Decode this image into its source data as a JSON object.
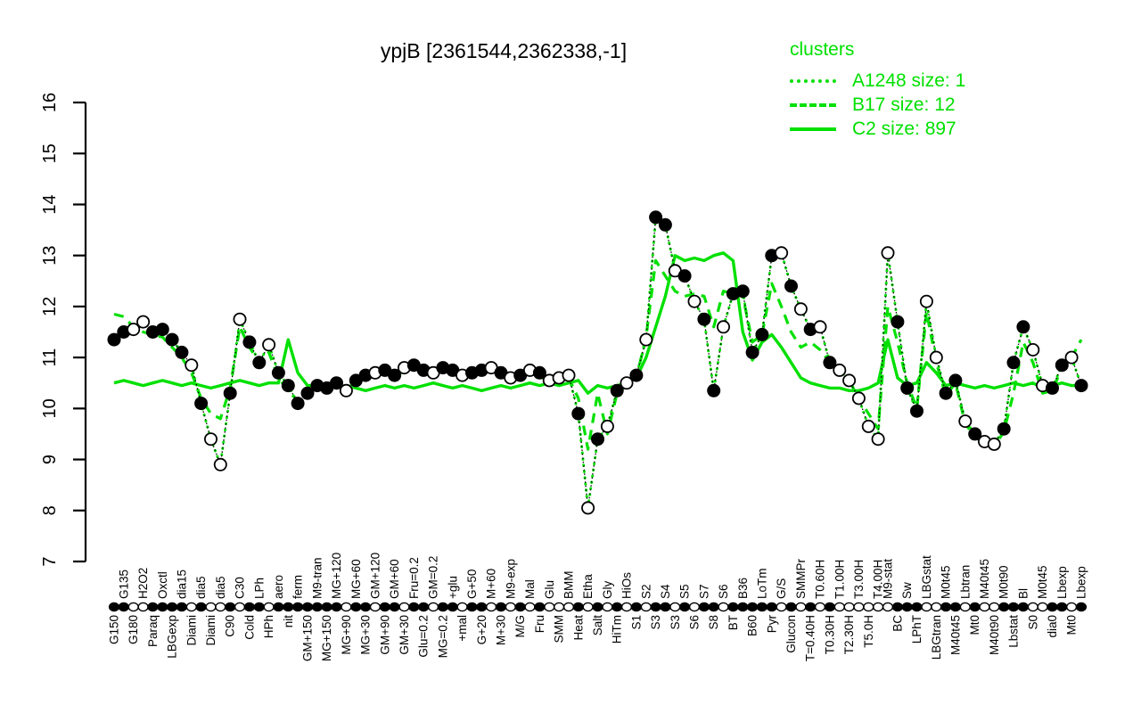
{
  "title": "ypjB [2361544,2362338,-1]",
  "legend": {
    "title": "clusters",
    "entries": [
      {
        "label": "A1248 size: 1",
        "style": "dotted"
      },
      {
        "label": "B17 size: 12",
        "style": "dashed"
      },
      {
        "label": "C2 size: 897",
        "style": "solid"
      }
    ]
  },
  "colors": {
    "cluster_green": "#00e000",
    "points_black": "#000000",
    "background": "#ffffff"
  },
  "chart_data": {
    "type": "line",
    "title": "ypjB [2361544,2362338,-1]",
    "xlabel": "",
    "ylabel": "",
    "ylim": [
      7,
      16
    ],
    "y_ticks": [
      7,
      8,
      9,
      10,
      11,
      12,
      13,
      14,
      15,
      16
    ],
    "grid": false,
    "legend_position": "top-right",
    "note": "Gene expression profile of ypjB across growth/stress conditions; black/open circles are per-sample values joined by a dotted line; green lines are cluster mean profiles. Condition labels alternate above (row t) and below (row b) the sample rug; fill k=filled black marker, w=open white marker.",
    "samples": [
      {
        "l": "G150",
        "r": "b",
        "f": "k",
        "v": 11.35
      },
      {
        "l": "G135",
        "r": "t",
        "f": "k",
        "v": 11.5
      },
      {
        "l": "G180",
        "r": "b",
        "f": "w",
        "v": 11.55
      },
      {
        "l": "H2O2",
        "r": "t",
        "f": "w",
        "v": 11.7
      },
      {
        "l": "Paraq",
        "r": "b",
        "f": "k",
        "v": 11.5
      },
      {
        "l": "Oxctl",
        "r": "t",
        "f": "k",
        "v": 11.55
      },
      {
        "l": "LBGexp",
        "r": "b",
        "f": "k",
        "v": 11.35
      },
      {
        "l": "dia15",
        "r": "t",
        "f": "k",
        "v": 11.1
      },
      {
        "l": "Diami",
        "r": "b",
        "f": "w",
        "v": 10.85
      },
      {
        "l": "dia5",
        "r": "t",
        "f": "k",
        "v": 10.1
      },
      {
        "l": "Diami",
        "r": "b",
        "f": "w",
        "v": 9.4
      },
      {
        "l": "dia5",
        "r": "t",
        "f": "w",
        "v": 8.9
      },
      {
        "l": "C90",
        "r": "b",
        "f": "k",
        "v": 10.3
      },
      {
        "l": "C30",
        "r": "t",
        "f": "w",
        "v": 11.75
      },
      {
        "l": "Cold",
        "r": "b",
        "f": "k",
        "v": 11.3
      },
      {
        "l": "LPh",
        "r": "t",
        "f": "k",
        "v": 10.9
      },
      {
        "l": "HPh",
        "r": "b",
        "f": "w",
        "v": 11.25
      },
      {
        "l": "aero",
        "r": "t",
        "f": "k",
        "v": 10.7
      },
      {
        "l": "nit",
        "r": "b",
        "f": "k",
        "v": 10.45
      },
      {
        "l": "ferm",
        "r": "t",
        "f": "k",
        "v": 10.1
      },
      {
        "l": "GM+150",
        "r": "b",
        "f": "k",
        "v": 10.3
      },
      {
        "l": "M9-tran",
        "r": "t",
        "f": "k",
        "v": 10.45
      },
      {
        "l": "MG+150",
        "r": "b",
        "f": "k",
        "v": 10.4
      },
      {
        "l": "MG+120",
        "r": "t",
        "f": "k",
        "v": 10.5
      },
      {
        "l": "MG+90",
        "r": "b",
        "f": "w",
        "v": 10.35
      },
      {
        "l": "MG+60",
        "r": "t",
        "f": "k",
        "v": 10.55
      },
      {
        "l": "MG+30",
        "r": "b",
        "f": "k",
        "v": 10.65
      },
      {
        "l": "GM+120",
        "r": "t",
        "f": "w",
        "v": 10.7
      },
      {
        "l": "GM+90",
        "r": "b",
        "f": "k",
        "v": 10.75
      },
      {
        "l": "GM+60",
        "r": "t",
        "f": "k",
        "v": 10.65
      },
      {
        "l": "GM+30",
        "r": "b",
        "f": "w",
        "v": 10.8
      },
      {
        "l": "Fru=0.2",
        "r": "t",
        "f": "k",
        "v": 10.85
      },
      {
        "l": "Glu=0.2",
        "r": "b",
        "f": "k",
        "v": 10.75
      },
      {
        "l": "GM=0.2",
        "r": "t",
        "f": "w",
        "v": 10.7
      },
      {
        "l": "MG=0.2",
        "r": "b",
        "f": "k",
        "v": 10.8
      },
      {
        "l": "+glu",
        "r": "t",
        "f": "k",
        "v": 10.75
      },
      {
        "l": "+mal",
        "r": "b",
        "f": "w",
        "v": 10.65
      },
      {
        "l": "G+50",
        "r": "t",
        "f": "k",
        "v": 10.7
      },
      {
        "l": "G+20",
        "r": "b",
        "f": "k",
        "v": 10.75
      },
      {
        "l": "M+60",
        "r": "t",
        "f": "w",
        "v": 10.8
      },
      {
        "l": "M+30",
        "r": "b",
        "f": "k",
        "v": 10.7
      },
      {
        "l": "M9-exp",
        "r": "t",
        "f": "w",
        "v": 10.6
      },
      {
        "l": "M/G",
        "r": "b",
        "f": "k",
        "v": 10.65
      },
      {
        "l": "Mal",
        "r": "t",
        "f": "w",
        "v": 10.75
      },
      {
        "l": "Fru",
        "r": "b",
        "f": "k",
        "v": 10.7
      },
      {
        "l": "Glu",
        "r": "t",
        "f": "w",
        "v": 10.55
      },
      {
        "l": "SMM",
        "r": "b",
        "f": "w",
        "v": 10.6
      },
      {
        "l": "BMM",
        "r": "t",
        "f": "w",
        "v": 10.65
      },
      {
        "l": "Heat",
        "r": "b",
        "f": "k",
        "v": 9.9
      },
      {
        "l": "Etha",
        "r": "t",
        "f": "w",
        "v": 8.05
      },
      {
        "l": "Salt",
        "r": "b",
        "f": "k",
        "v": 9.4
      },
      {
        "l": "Gly",
        "r": "t",
        "f": "w",
        "v": 9.65
      },
      {
        "l": "HiTm",
        "r": "b",
        "f": "k",
        "v": 10.35
      },
      {
        "l": "HiOs",
        "r": "t",
        "f": "w",
        "v": 10.5
      },
      {
        "l": "S1",
        "r": "b",
        "f": "k",
        "v": 10.65
      },
      {
        "l": "S2",
        "r": "t",
        "f": "w",
        "v": 11.35
      },
      {
        "l": "S3",
        "r": "b",
        "f": "k",
        "v": 13.75
      },
      {
        "l": "S4",
        "r": "t",
        "f": "k",
        "v": 13.6
      },
      {
        "l": "S3",
        "r": "b",
        "f": "w",
        "v": 12.7
      },
      {
        "l": "S5",
        "r": "t",
        "f": "k",
        "v": 12.6
      },
      {
        "l": "S6",
        "r": "b",
        "f": "w",
        "v": 12.1
      },
      {
        "l": "S7",
        "r": "t",
        "f": "k",
        "v": 11.75
      },
      {
        "l": "S8",
        "r": "b",
        "f": "k",
        "v": 10.35
      },
      {
        "l": "S6",
        "r": "t",
        "f": "w",
        "v": 11.6
      },
      {
        "l": "BT",
        "r": "b",
        "f": "k",
        "v": 12.25
      },
      {
        "l": "B36",
        "r": "t",
        "f": "k",
        "v": 12.3
      },
      {
        "l": "B60",
        "r": "b",
        "f": "k",
        "v": 11.1
      },
      {
        "l": "LoTm",
        "r": "t",
        "f": "k",
        "v": 11.45
      },
      {
        "l": "Pyr",
        "r": "b",
        "f": "k",
        "v": 13.0
      },
      {
        "l": "G/S",
        "r": "t",
        "f": "w",
        "v": 13.05
      },
      {
        "l": "Glucon",
        "r": "b",
        "f": "k",
        "v": 12.4
      },
      {
        "l": "SMMPr",
        "r": "t",
        "f": "w",
        "v": 11.95
      },
      {
        "l": "T=0.40H",
        "r": "b",
        "f": "k",
        "v": 11.55
      },
      {
        "l": "T0.60H",
        "r": "t",
        "f": "w",
        "v": 11.6
      },
      {
        "l": "T0.30H",
        "r": "b",
        "f": "k",
        "v": 10.9
      },
      {
        "l": "T1.00H",
        "r": "t",
        "f": "w",
        "v": 10.75
      },
      {
        "l": "T2.30H",
        "r": "b",
        "f": "w",
        "v": 10.55
      },
      {
        "l": "T3.00H",
        "r": "t",
        "f": "w",
        "v": 10.2
      },
      {
        "l": "T5.0H",
        "r": "b",
        "f": "w",
        "v": 9.65
      },
      {
        "l": "T4.00H",
        "r": "t",
        "f": "w",
        "v": 9.4
      },
      {
        "l": "M9-stat",
        "r": "t",
        "f": "w",
        "v": 13.05
      },
      {
        "l": "BC",
        "r": "b",
        "f": "k",
        "v": 11.7
      },
      {
        "l": "Sw",
        "r": "t",
        "f": "k",
        "v": 10.4
      },
      {
        "l": "LPhT",
        "r": "b",
        "f": "k",
        "v": 9.95
      },
      {
        "l": "LBGstat",
        "r": "t",
        "f": "w",
        "v": 12.1
      },
      {
        "l": "LBGtran",
        "r": "b",
        "f": "w",
        "v": 11.0
      },
      {
        "l": "M0t45",
        "r": "t",
        "f": "k",
        "v": 10.3
      },
      {
        "l": "M40t45",
        "r": "b",
        "f": "k",
        "v": 10.55
      },
      {
        "l": "Lbtran",
        "r": "t",
        "f": "w",
        "v": 9.75
      },
      {
        "l": "Mt0",
        "r": "b",
        "f": "k",
        "v": 9.5
      },
      {
        "l": "M40t45",
        "r": "t",
        "f": "w",
        "v": 9.35
      },
      {
        "l": "M40t90",
        "r": "b",
        "f": "w",
        "v": 9.3
      },
      {
        "l": "M0t90",
        "r": "t",
        "f": "k",
        "v": 9.6
      },
      {
        "l": "Lbstat",
        "r": "b",
        "f": "k",
        "v": 10.9
      },
      {
        "l": "Bl",
        "r": "t",
        "f": "k",
        "v": 11.6
      },
      {
        "l": "S0",
        "r": "b",
        "f": "w",
        "v": 11.15
      },
      {
        "l": "M0t45",
        "r": "t",
        "f": "w",
        "v": 10.45
      },
      {
        "l": "dia0",
        "r": "b",
        "f": "k",
        "v": 10.4
      },
      {
        "l": "Lbexp",
        "r": "t",
        "f": "k",
        "v": 10.85
      },
      {
        "l": "Mt0",
        "r": "b",
        "f": "w",
        "v": 11.0
      },
      {
        "l": "Lbexp",
        "r": "t",
        "f": "k",
        "v": 10.45
      }
    ],
    "series": [
      {
        "name": "A1248",
        "size": 1,
        "style": "dotted",
        "values": "follows_samples"
      },
      {
        "name": "B17",
        "size": 12,
        "style": "dashed",
        "values": [
          11.85,
          11.8,
          11.6,
          11.5,
          11.45,
          11.4,
          11.2,
          11.0,
          10.7,
          10.2,
          9.9,
          9.8,
          10.4,
          11.6,
          11.2,
          10.9,
          11.1,
          10.6,
          10.35,
          10.15,
          10.3,
          10.4,
          10.45,
          10.5,
          10.4,
          10.5,
          10.6,
          10.65,
          10.7,
          10.6,
          10.75,
          10.8,
          10.7,
          10.65,
          10.75,
          10.7,
          10.6,
          10.65,
          10.7,
          10.75,
          10.65,
          10.55,
          10.6,
          10.7,
          10.65,
          10.5,
          10.55,
          10.6,
          10.2,
          9.2,
          10.3,
          9.5,
          10.3,
          10.45,
          10.6,
          11.4,
          12.9,
          12.6,
          12.3,
          12.2,
          12.25,
          12.2,
          11.6,
          12.3,
          12.25,
          12.2,
          11.3,
          11.45,
          12.45,
          12.0,
          11.5,
          11.2,
          11.3,
          11.15,
          10.9,
          10.7,
          10.55,
          10.2,
          9.9,
          9.6,
          12.0,
          11.3,
          10.5,
          10.0,
          11.9,
          10.9,
          10.25,
          10.5,
          9.7,
          9.45,
          9.3,
          9.25,
          9.55,
          10.3,
          11.3,
          10.9,
          10.3,
          10.35,
          10.8,
          11.0,
          11.35
        ]
      },
      {
        "name": "C2",
        "size": 897,
        "style": "solid",
        "values": [
          10.5,
          10.55,
          10.5,
          10.45,
          10.5,
          10.55,
          10.5,
          10.45,
          10.5,
          10.45,
          10.4,
          10.45,
          10.5,
          10.55,
          10.5,
          10.45,
          10.5,
          10.5,
          11.35,
          10.7,
          10.45,
          10.45,
          10.45,
          10.4,
          10.45,
          10.4,
          10.35,
          10.4,
          10.45,
          10.4,
          10.45,
          10.4,
          10.45,
          10.5,
          10.45,
          10.4,
          10.45,
          10.4,
          10.35,
          10.4,
          10.45,
          10.4,
          10.45,
          10.5,
          10.45,
          10.5,
          10.45,
          10.5,
          10.55,
          10.3,
          10.45,
          10.4,
          10.45,
          10.5,
          10.6,
          11.0,
          11.6,
          12.2,
          13.0,
          12.9,
          12.95,
          12.9,
          13.0,
          13.05,
          12.9,
          11.5,
          10.95,
          11.3,
          11.45,
          11.2,
          10.9,
          10.6,
          10.5,
          10.45,
          10.4,
          10.4,
          10.35,
          10.35,
          10.4,
          10.5,
          11.35,
          10.6,
          10.45,
          10.5,
          10.9,
          10.7,
          10.45,
          10.5,
          10.45,
          10.4,
          10.45,
          10.4,
          10.45,
          10.5,
          10.45,
          10.5,
          10.4,
          10.45,
          10.5,
          10.45,
          10.45
        ]
      }
    ]
  },
  "y_axis": {
    "tick_labels": [
      "7",
      "8",
      "9",
      "10",
      "11",
      "12",
      "13",
      "14",
      "15",
      "16"
    ]
  }
}
